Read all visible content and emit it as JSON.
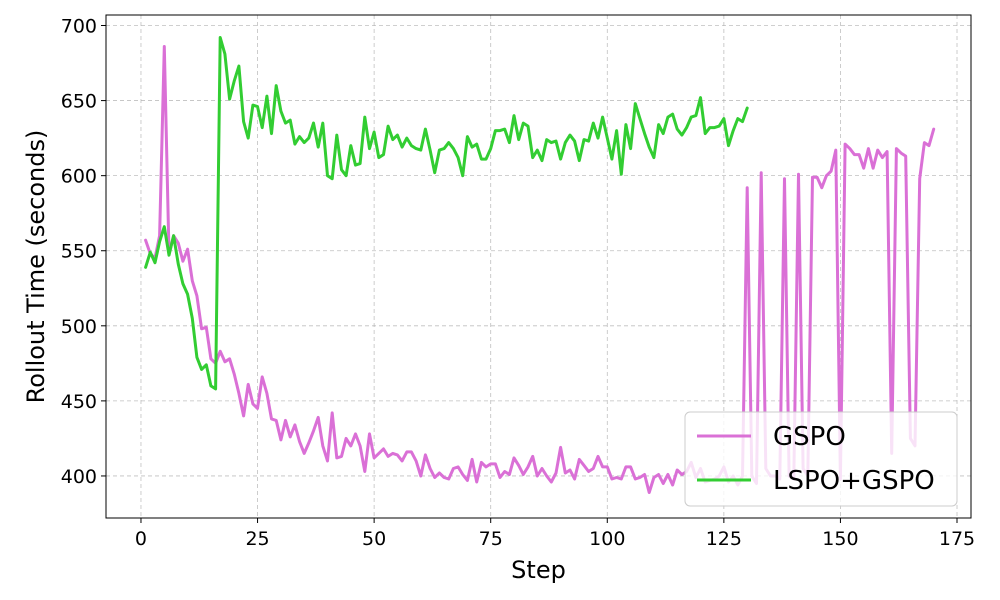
{
  "chart_data": {
    "type": "line",
    "title": "",
    "xlabel": "Step",
    "ylabel": "Rollout Time (seconds)",
    "xlim": [
      -7.5,
      178
    ],
    "ylim": [
      372,
      707
    ],
    "xticks": [
      0,
      25,
      50,
      75,
      100,
      125,
      150,
      175
    ],
    "yticks": [
      400,
      450,
      500,
      550,
      600,
      650,
      700
    ],
    "grid": true,
    "legend_position": "bottom-right",
    "series": [
      {
        "name": "GSPO",
        "color": "#DA70D6",
        "points": [
          [
            1,
            557
          ],
          [
            2,
            548
          ],
          [
            3,
            545
          ],
          [
            4,
            560
          ],
          [
            5,
            686
          ],
          [
            6,
            548
          ],
          [
            7,
            560
          ],
          [
            8,
            555
          ],
          [
            9,
            543
          ],
          [
            10,
            551
          ],
          [
            11,
            530
          ],
          [
            12,
            520
          ],
          [
            13,
            498
          ],
          [
            14,
            499
          ],
          [
            15,
            478
          ],
          [
            16,
            475
          ],
          [
            17,
            483
          ],
          [
            18,
            476
          ],
          [
            19,
            478
          ],
          [
            20,
            468
          ],
          [
            21,
            455
          ],
          [
            22,
            440
          ],
          [
            23,
            461
          ],
          [
            24,
            448
          ],
          [
            25,
            445
          ],
          [
            26,
            466
          ],
          [
            27,
            455
          ],
          [
            28,
            438
          ],
          [
            29,
            437
          ],
          [
            30,
            424
          ],
          [
            31,
            437
          ],
          [
            32,
            426
          ],
          [
            33,
            434
          ],
          [
            34,
            423
          ],
          [
            35,
            415
          ],
          [
            36,
            422
          ],
          [
            37,
            430
          ],
          [
            38,
            439
          ],
          [
            39,
            420
          ],
          [
            40,
            410
          ],
          [
            41,
            442
          ],
          [
            42,
            412
          ],
          [
            43,
            413
          ],
          [
            44,
            425
          ],
          [
            45,
            420
          ],
          [
            46,
            428
          ],
          [
            47,
            420
          ],
          [
            48,
            403
          ],
          [
            49,
            428
          ],
          [
            50,
            412
          ],
          [
            51,
            415
          ],
          [
            52,
            418
          ],
          [
            53,
            413
          ],
          [
            54,
            415
          ],
          [
            55,
            414
          ],
          [
            56,
            410
          ],
          [
            57,
            416
          ],
          [
            58,
            416
          ],
          [
            59,
            410
          ],
          [
            60,
            400
          ],
          [
            61,
            414
          ],
          [
            62,
            405
          ],
          [
            63,
            399
          ],
          [
            64,
            402
          ],
          [
            65,
            399
          ],
          [
            66,
            398
          ],
          [
            67,
            405
          ],
          [
            68,
            406
          ],
          [
            69,
            401
          ],
          [
            70,
            397
          ],
          [
            71,
            411
          ],
          [
            72,
            396
          ],
          [
            73,
            409
          ],
          [
            74,
            406
          ],
          [
            75,
            408
          ],
          [
            76,
            408
          ],
          [
            77,
            399
          ],
          [
            78,
            403
          ],
          [
            79,
            401
          ],
          [
            80,
            412
          ],
          [
            81,
            407
          ],
          [
            82,
            401
          ],
          [
            83,
            406
          ],
          [
            84,
            413
          ],
          [
            85,
            400
          ],
          [
            86,
            405
          ],
          [
            87,
            400
          ],
          [
            88,
            396
          ],
          [
            89,
            402
          ],
          [
            90,
            419
          ],
          [
            91,
            402
          ],
          [
            92,
            404
          ],
          [
            93,
            398
          ],
          [
            94,
            411
          ],
          [
            95,
            407
          ],
          [
            96,
            403
          ],
          [
            97,
            405
          ],
          [
            98,
            413
          ],
          [
            99,
            406
          ],
          [
            100,
            406
          ],
          [
            101,
            398
          ],
          [
            102,
            399
          ],
          [
            103,
            398
          ],
          [
            104,
            406
          ],
          [
            105,
            406
          ],
          [
            106,
            398
          ],
          [
            107,
            399
          ],
          [
            108,
            401
          ],
          [
            109,
            389
          ],
          [
            110,
            399
          ],
          [
            111,
            401
          ],
          [
            112,
            395
          ],
          [
            113,
            401
          ],
          [
            114,
            394
          ],
          [
            115,
            404
          ],
          [
            116,
            401
          ],
          [
            117,
            403
          ],
          [
            118,
            409
          ],
          [
            119,
            399
          ],
          [
            120,
            405
          ],
          [
            121,
            396
          ],
          [
            122,
            397
          ],
          [
            123,
            398
          ],
          [
            124,
            400
          ],
          [
            125,
            406
          ],
          [
            126,
            396
          ],
          [
            127,
            400
          ],
          [
            128,
            394
          ],
          [
            129,
            400
          ],
          [
            130,
            592
          ],
          [
            131,
            400
          ],
          [
            132,
            395
          ],
          [
            133,
            602
          ],
          [
            134,
            405
          ],
          [
            135,
            400
          ],
          [
            136,
            400
          ],
          [
            137,
            398
          ],
          [
            138,
            598
          ],
          [
            139,
            400
          ],
          [
            140,
            398
          ],
          [
            141,
            601
          ],
          [
            142,
            405
          ],
          [
            143,
            400
          ],
          [
            144,
            599
          ],
          [
            145,
            599
          ],
          [
            146,
            592
          ],
          [
            147,
            600
          ],
          [
            148,
            603
          ],
          [
            149,
            617
          ],
          [
            150,
            398
          ],
          [
            151,
            621
          ],
          [
            152,
            618
          ],
          [
            153,
            614
          ],
          [
            154,
            614
          ],
          [
            155,
            605
          ],
          [
            156,
            618
          ],
          [
            157,
            605
          ],
          [
            158,
            617
          ],
          [
            159,
            612
          ],
          [
            160,
            616
          ],
          [
            161,
            415
          ],
          [
            162,
            618
          ],
          [
            163,
            615
          ],
          [
            164,
            613
          ],
          [
            165,
            425
          ],
          [
            166,
            420
          ],
          [
            167,
            598
          ],
          [
            168,
            622
          ],
          [
            169,
            620
          ],
          [
            170,
            631
          ]
        ]
      },
      {
        "name": "LSPO+GSPO",
        "color": "#32CD32",
        "points": [
          [
            1,
            539
          ],
          [
            2,
            549
          ],
          [
            3,
            542
          ],
          [
            4,
            556
          ],
          [
            5,
            566
          ],
          [
            6,
            547
          ],
          [
            7,
            560
          ],
          [
            8,
            541
          ],
          [
            9,
            528
          ],
          [
            10,
            521
          ],
          [
            11,
            505
          ],
          [
            12,
            479
          ],
          [
            13,
            471
          ],
          [
            14,
            474
          ],
          [
            15,
            460
          ],
          [
            16,
            458
          ],
          [
            17,
            692
          ],
          [
            18,
            681
          ],
          [
            19,
            651
          ],
          [
            20,
            663
          ],
          [
            21,
            673
          ],
          [
            22,
            636
          ],
          [
            23,
            625
          ],
          [
            24,
            647
          ],
          [
            25,
            646
          ],
          [
            26,
            632
          ],
          [
            27,
            653
          ],
          [
            28,
            628
          ],
          [
            29,
            660
          ],
          [
            30,
            643
          ],
          [
            31,
            635
          ],
          [
            32,
            637
          ],
          [
            33,
            621
          ],
          [
            34,
            626
          ],
          [
            35,
            622
          ],
          [
            36,
            625
          ],
          [
            37,
            635
          ],
          [
            38,
            619
          ],
          [
            39,
            635
          ],
          [
            40,
            600
          ],
          [
            41,
            598
          ],
          [
            42,
            627
          ],
          [
            43,
            604
          ],
          [
            44,
            600
          ],
          [
            45,
            620
          ],
          [
            46,
            607
          ],
          [
            47,
            608
          ],
          [
            48,
            639
          ],
          [
            49,
            618
          ],
          [
            50,
            629
          ],
          [
            51,
            612
          ],
          [
            52,
            614
          ],
          [
            53,
            633
          ],
          [
            54,
            624
          ],
          [
            55,
            627
          ],
          [
            56,
            619
          ],
          [
            57,
            625
          ],
          [
            58,
            620
          ],
          [
            59,
            618
          ],
          [
            60,
            617
          ],
          [
            61,
            631
          ],
          [
            62,
            617
          ],
          [
            63,
            602
          ],
          [
            64,
            617
          ],
          [
            65,
            618
          ],
          [
            66,
            622
          ],
          [
            67,
            618
          ],
          [
            68,
            612
          ],
          [
            69,
            600
          ],
          [
            70,
            626
          ],
          [
            71,
            619
          ],
          [
            72,
            621
          ],
          [
            73,
            611
          ],
          [
            74,
            611
          ],
          [
            75,
            618
          ],
          [
            76,
            630
          ],
          [
            77,
            630
          ],
          [
            78,
            631
          ],
          [
            79,
            622
          ],
          [
            80,
            640
          ],
          [
            81,
            624
          ],
          [
            82,
            635
          ],
          [
            83,
            633
          ],
          [
            84,
            612
          ],
          [
            85,
            617
          ],
          [
            86,
            610
          ],
          [
            87,
            624
          ],
          [
            88,
            622
          ],
          [
            89,
            623
          ],
          [
            90,
            611
          ],
          [
            91,
            622
          ],
          [
            92,
            627
          ],
          [
            93,
            623
          ],
          [
            94,
            610
          ],
          [
            95,
            624
          ],
          [
            96,
            623
          ],
          [
            97,
            635
          ],
          [
            98,
            625
          ],
          [
            99,
            639
          ],
          [
            100,
            625
          ],
          [
            101,
            611
          ],
          [
            102,
            630
          ],
          [
            103,
            601
          ],
          [
            104,
            634
          ],
          [
            105,
            618
          ],
          [
            106,
            648
          ],
          [
            107,
            638
          ],
          [
            108,
            628
          ],
          [
            109,
            619
          ],
          [
            110,
            612
          ],
          [
            111,
            634
          ],
          [
            112,
            628
          ],
          [
            113,
            639
          ],
          [
            114,
            641
          ],
          [
            115,
            631
          ],
          [
            116,
            627
          ],
          [
            117,
            632
          ],
          [
            118,
            639
          ],
          [
            119,
            640
          ],
          [
            120,
            652
          ],
          [
            121,
            628
          ],
          [
            122,
            632
          ],
          [
            123,
            632
          ],
          [
            124,
            633
          ],
          [
            125,
            638
          ],
          [
            126,
            620
          ],
          [
            127,
            630
          ],
          [
            128,
            638
          ],
          [
            129,
            636
          ],
          [
            130,
            645
          ]
        ]
      }
    ]
  }
}
